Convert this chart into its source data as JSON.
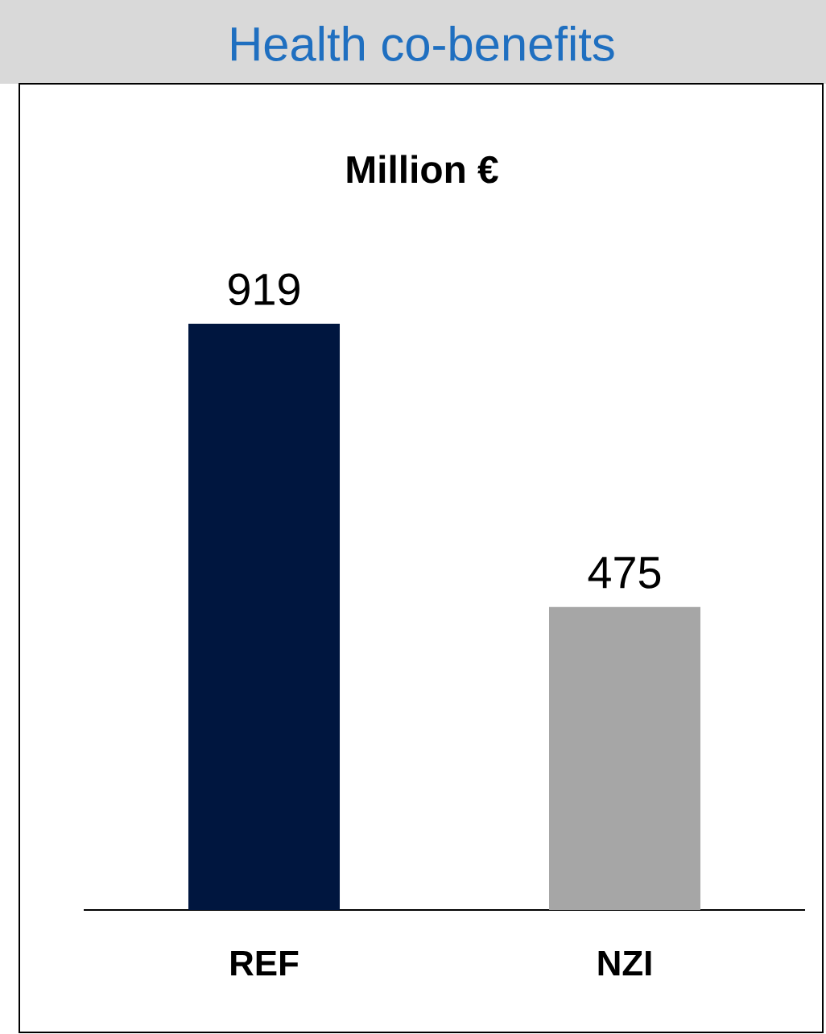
{
  "chart_data": {
    "type": "bar",
    "title": "Health co-benefits",
    "subtitle": "Million €",
    "categories": [
      "REF",
      "NZI"
    ],
    "values": [
      919,
      475
    ],
    "colors": [
      "#00163f",
      "#a6a6a6"
    ],
    "data_labels": true
  }
}
